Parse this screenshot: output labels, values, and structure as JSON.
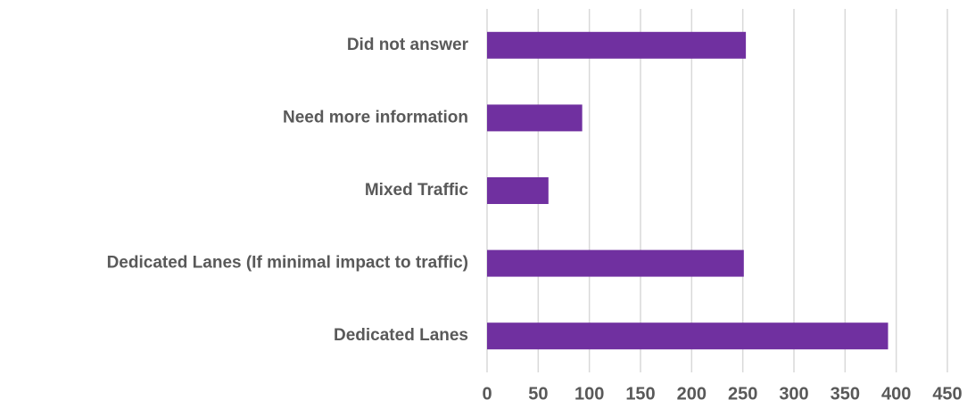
{
  "chart_data": {
    "type": "hbar",
    "categories": [
      "Did not answer",
      "Need more information",
      "Mixed Traffic",
      "Dedicated Lanes (If minimal impact to traffic)",
      "Dedicated Lanes"
    ],
    "values": [
      253,
      93,
      60,
      251,
      392
    ],
    "color": "#7030a0",
    "xlim": [
      0,
      450
    ],
    "xticks": [
      0,
      50,
      100,
      150,
      200,
      250,
      300,
      350,
      400,
      450
    ],
    "grid": true
  }
}
